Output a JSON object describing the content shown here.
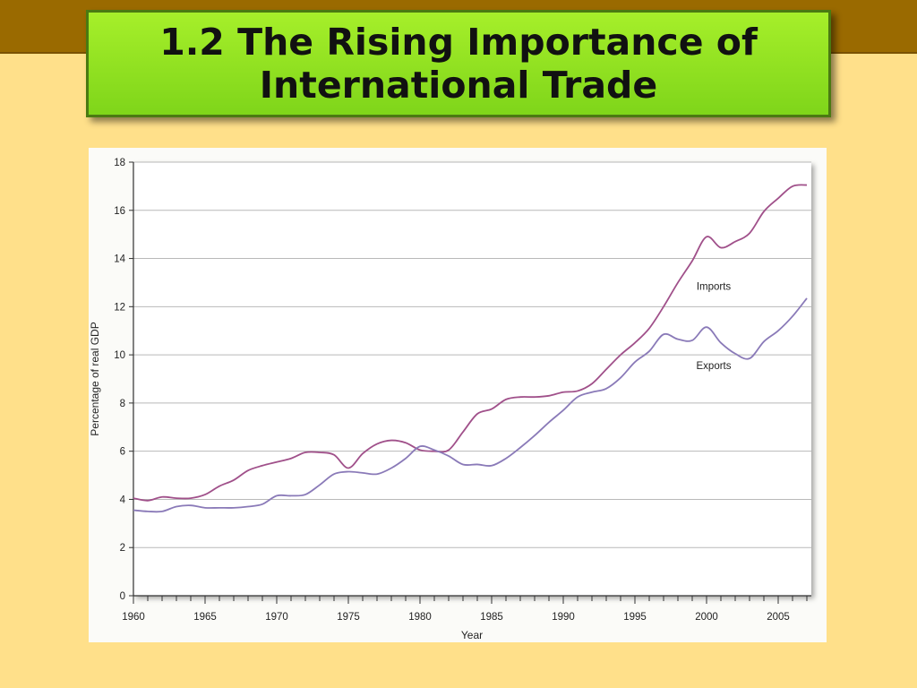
{
  "slide": {
    "title": "1.2 The Rising Importance of International Trade"
  },
  "colors": {
    "background": "#ffe08a",
    "top_band": "#9a6a00",
    "title_box": "#8fdf1e",
    "imports_line": "#a0508a",
    "exports_line": "#8a7ab8"
  },
  "chart_data": {
    "type": "line",
    "title": "",
    "xlabel": "Year",
    "ylabel": "Percentage of real GDP",
    "xlim": [
      1960,
      2007
    ],
    "ylim": [
      0,
      18
    ],
    "xticks": [
      1960,
      1965,
      1970,
      1975,
      1980,
      1985,
      1990,
      1995,
      2000,
      2005
    ],
    "yticks": [
      0,
      2,
      4,
      6,
      8,
      10,
      12,
      14,
      16,
      18
    ],
    "grid": true,
    "series": [
      {
        "name": "Imports",
        "x": [
          1960,
          1961,
          1962,
          1963,
          1964,
          1965,
          1966,
          1967,
          1968,
          1969,
          1970,
          1971,
          1972,
          1973,
          1974,
          1975,
          1976,
          1977,
          1978,
          1979,
          1980,
          1981,
          1982,
          1983,
          1984,
          1985,
          1986,
          1987,
          1988,
          1989,
          1990,
          1991,
          1992,
          1993,
          1994,
          1995,
          1996,
          1997,
          1998,
          1999,
          2000,
          2001,
          2002,
          2003,
          2004,
          2005,
          2006,
          2007
        ],
        "y": [
          4.05,
          3.95,
          4.1,
          4.05,
          4.05,
          4.2,
          4.55,
          4.8,
          5.2,
          5.4,
          5.55,
          5.7,
          5.95,
          5.95,
          5.85,
          5.3,
          5.9,
          6.3,
          6.45,
          6.35,
          6.05,
          6.0,
          6.05,
          6.8,
          7.55,
          7.75,
          8.15,
          8.25,
          8.25,
          8.3,
          8.45,
          8.5,
          8.8,
          9.4,
          10.0,
          10.5,
          11.1,
          12.0,
          13.0,
          13.9,
          14.9,
          14.45,
          14.7,
          15.05,
          15.95,
          16.5,
          17.0,
          17.05
        ]
      },
      {
        "name": "Exports",
        "x": [
          1960,
          1961,
          1962,
          1963,
          1964,
          1965,
          1966,
          1967,
          1968,
          1969,
          1970,
          1971,
          1972,
          1973,
          1974,
          1975,
          1976,
          1977,
          1978,
          1979,
          1980,
          1981,
          1982,
          1983,
          1984,
          1985,
          1986,
          1987,
          1988,
          1989,
          1990,
          1991,
          1992,
          1993,
          1994,
          1995,
          1996,
          1997,
          1998,
          1999,
          2000,
          2001,
          2002,
          2003,
          2004,
          2005,
          2006,
          2007
        ],
        "y": [
          3.55,
          3.5,
          3.5,
          3.7,
          3.75,
          3.65,
          3.65,
          3.65,
          3.7,
          3.8,
          4.15,
          4.15,
          4.2,
          4.6,
          5.05,
          5.15,
          5.1,
          5.05,
          5.3,
          5.7,
          6.2,
          6.05,
          5.8,
          5.45,
          5.45,
          5.4,
          5.7,
          6.15,
          6.65,
          7.2,
          7.7,
          8.25,
          8.45,
          8.6,
          9.05,
          9.7,
          10.15,
          10.85,
          10.65,
          10.6,
          11.15,
          10.5,
          10.05,
          9.85,
          10.55,
          11.0,
          11.6,
          12.35
        ]
      }
    ],
    "annotations": [
      {
        "text": "Imports",
        "x": 2000.5,
        "y": 12.7
      },
      {
        "text": "Exports",
        "x": 2000.5,
        "y": 9.4
      }
    ]
  }
}
